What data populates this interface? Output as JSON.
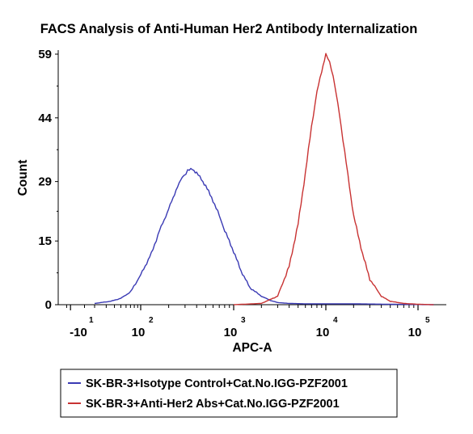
{
  "chart_data": {
    "type": "line",
    "title": "FACS Analysis of Anti-Human Her2 Antibody Internalization",
    "xlabel": "APC-A",
    "ylabel": "Count",
    "x_scale": "biexponential (log with linear region near zero)",
    "xlim": [
      -25,
      200000
    ],
    "ylim": [
      0,
      59
    ],
    "y_ticks": [
      "0",
      "15",
      "29",
      "44",
      "59"
    ],
    "y_tick_values": [
      0,
      15,
      29,
      44,
      59
    ],
    "x_ticks": [
      {
        "base": "-10",
        "exp": "1",
        "value": -10
      },
      {
        "base": "10",
        "exp": "2",
        "value": 100
      },
      {
        "base": "10",
        "exp": "3",
        "value": 1000
      },
      {
        "base": "10",
        "exp": "4",
        "value": 10000
      },
      {
        "base": "10",
        "exp": "5",
        "value": 100000
      }
    ],
    "grid": false,
    "legend_position": "bottom",
    "series": [
      {
        "name": "SK-BR-3+Isotype Control+Cat.No.IGG-PZF2001",
        "color": "#3a3ab4",
        "x": [
          20,
          35,
          50,
          70,
          100,
          130,
          160,
          200,
          240,
          280,
          320,
          360,
          400,
          450,
          500,
          600,
          700,
          800,
          1000,
          1200,
          1500,
          2000,
          2500,
          3000,
          4000,
          6000,
          10000,
          20000,
          50000,
          150000
        ],
        "y": [
          0.3,
          0.8,
          1.5,
          3,
          7,
          12,
          17.5,
          22.5,
          27,
          30,
          31.5,
          32,
          31,
          29.5,
          28,
          24.5,
          21,
          17.5,
          12.5,
          8,
          4,
          2,
          1,
          0.5,
          0.3,
          0.2,
          0.2,
          0.2,
          0.1,
          0
        ]
      },
      {
        "name": "SK-BR-3+Anti-Her2 Abs+Cat.No.IGG-PZF2001",
        "color": "#c83232",
        "x": [
          1000,
          2000,
          3000,
          4000,
          5000,
          6000,
          7000,
          8000,
          9000,
          10000,
          11000,
          12000,
          14000,
          16000,
          18000,
          20000,
          25000,
          30000,
          40000,
          50000,
          70000,
          100000,
          150000
        ],
        "y": [
          0,
          0.3,
          2,
          9,
          19,
          31,
          42,
          50,
          55,
          59,
          57,
          54,
          45,
          36,
          28,
          21,
          12,
          6,
          2,
          0.8,
          0.3,
          0.1,
          0
        ]
      }
    ]
  }
}
